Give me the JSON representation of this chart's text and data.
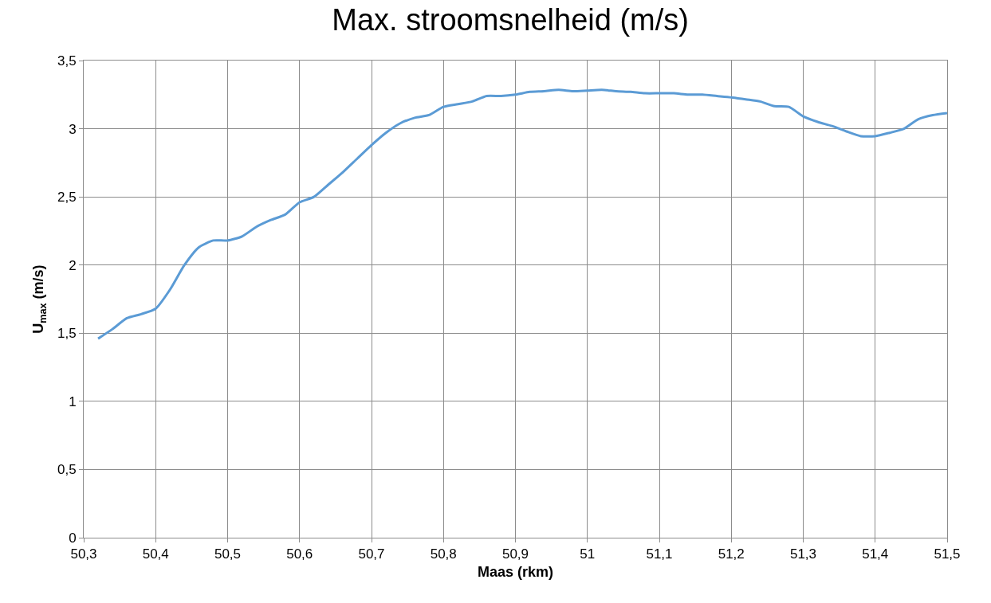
{
  "chart_data": {
    "type": "line",
    "title": "Max. stroomsnelheid (m/s)",
    "xlabel": "Maas (rkm)",
    "ylabel": "U$_{max}$ (m/s)",
    "x": [
      50.32,
      50.34,
      50.36,
      50.38,
      50.4,
      50.42,
      50.44,
      50.46,
      50.48,
      50.5,
      50.52,
      50.54,
      50.56,
      50.58,
      50.6,
      50.62,
      50.64,
      50.66,
      50.68,
      50.7,
      50.72,
      50.74,
      50.76,
      50.78,
      50.8,
      50.82,
      50.84,
      50.86,
      50.88,
      50.9,
      50.92,
      50.94,
      50.96,
      50.98,
      51.0,
      51.02,
      51.04,
      51.06,
      51.08,
      51.1,
      51.12,
      51.14,
      51.16,
      51.18,
      51.2,
      51.22,
      51.24,
      51.26,
      51.28,
      51.3,
      51.32,
      51.34,
      51.36,
      51.38,
      51.4,
      51.42,
      51.44,
      51.46,
      51.48,
      51.5
    ],
    "series": [
      {
        "color": "#5b9bd5",
        "values": [
          1.46,
          1.53,
          1.61,
          1.64,
          1.68,
          1.82,
          2.0,
          2.13,
          2.18,
          2.18,
          2.21,
          2.28,
          2.33,
          2.37,
          2.46,
          2.5,
          2.59,
          2.68,
          2.78,
          2.88,
          2.97,
          3.04,
          3.08,
          3.1,
          3.16,
          3.18,
          3.2,
          3.24,
          3.24,
          3.25,
          3.27,
          3.275,
          3.285,
          3.275,
          3.28,
          3.285,
          3.275,
          3.27,
          3.26,
          3.26,
          3.26,
          3.25,
          3.25,
          3.24,
          3.23,
          3.215,
          3.2,
          3.165,
          3.16,
          3.09,
          3.05,
          3.02,
          2.98,
          2.945,
          2.945,
          2.97,
          3.0,
          3.07,
          3.1,
          3.115
        ]
      }
    ],
    "xlim": [
      50.3,
      51.5
    ],
    "xticks": [
      {
        "value": 50.3,
        "label": "50,3"
      },
      {
        "value": 50.4,
        "label": "50,4"
      },
      {
        "value": 50.5,
        "label": "50,5"
      },
      {
        "value": 50.6,
        "label": "50,6"
      },
      {
        "value": 50.7,
        "label": "50,7"
      },
      {
        "value": 50.8,
        "label": "50,8"
      },
      {
        "value": 50.9,
        "label": "50,9"
      },
      51,
      {
        "value": 51.1,
        "label": "51,1"
      },
      {
        "value": 51.2,
        "label": "51,2"
      },
      {
        "value": 51.3,
        "label": "51,3"
      },
      {
        "value": 51.4,
        "label": "51,4"
      },
      {
        "value": 51.5,
        "label": "51,5"
      }
    ],
    "ylim": [
      0,
      3.5
    ],
    "yticks": [
      0,
      {
        "value": 0.5,
        "label": "0,5"
      },
      1,
      {
        "value": 1.5,
        "label": "1,5"
      },
      2,
      {
        "value": 2.5,
        "label": "2,5"
      },
      3,
      {
        "value": 3.5,
        "label": "3,5"
      }
    ],
    "grid": true,
    "marker": "none",
    "line_style": "solid"
  }
}
